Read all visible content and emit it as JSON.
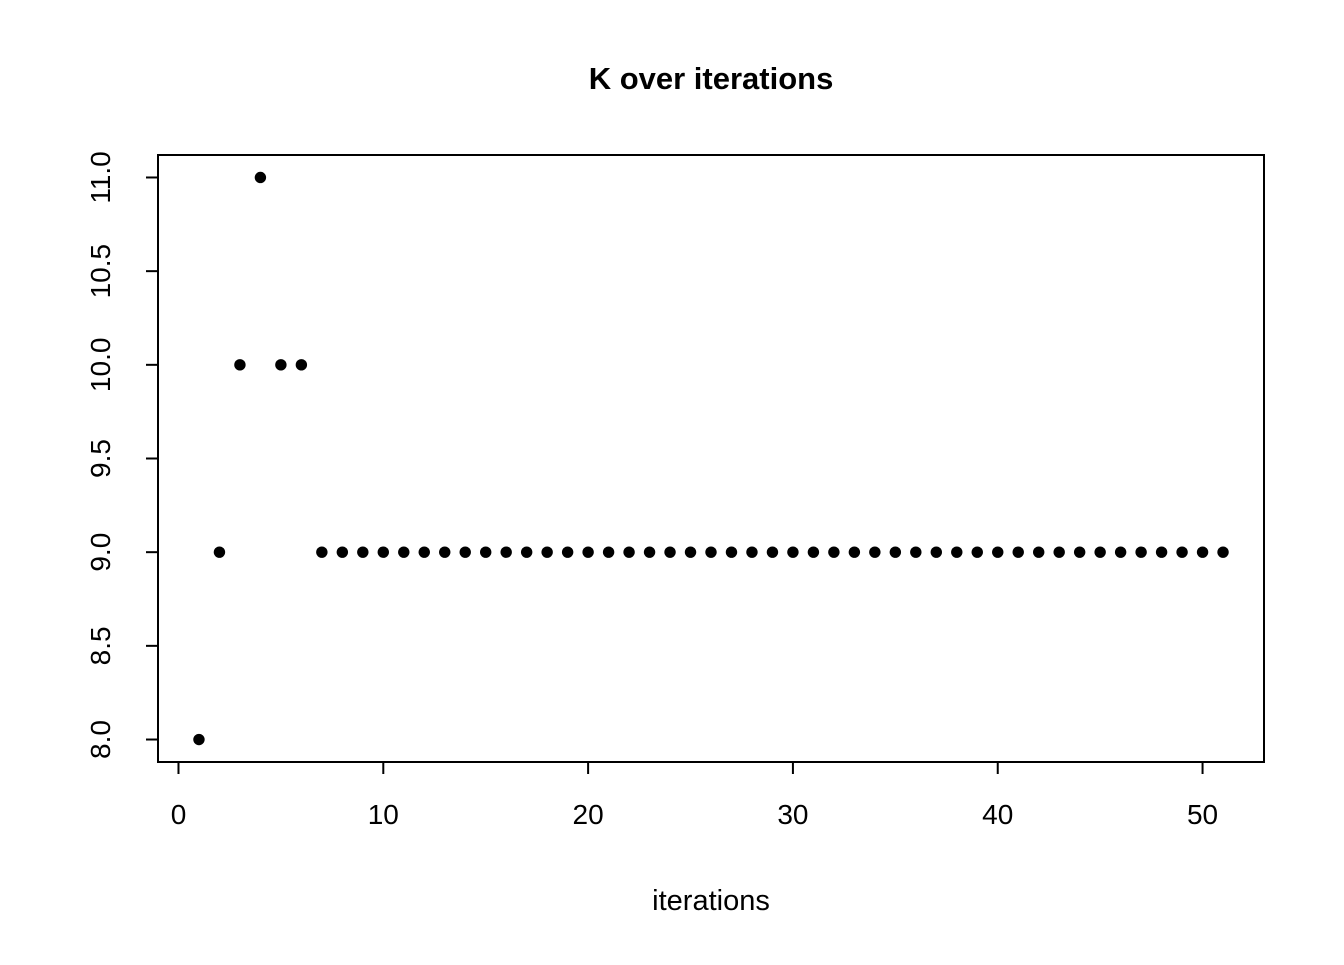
{
  "page": {
    "background": "#ffffff"
  },
  "chart_data": {
    "type": "scatter",
    "title": "K over iterations",
    "xlabel": "iterations",
    "ylabel": "",
    "x": [
      1,
      2,
      3,
      4,
      5,
      6,
      7,
      8,
      9,
      10,
      11,
      12,
      13,
      14,
      15,
      16,
      17,
      18,
      19,
      20,
      21,
      22,
      23,
      24,
      25,
      26,
      27,
      28,
      29,
      30,
      31,
      32,
      33,
      34,
      35,
      36,
      37,
      38,
      39,
      40,
      41,
      42,
      43,
      44,
      45,
      46,
      47,
      48,
      49,
      50,
      51
    ],
    "y": [
      8,
      9,
      10,
      11,
      10,
      10,
      9,
      9,
      9,
      9,
      9,
      9,
      9,
      9,
      9,
      9,
      9,
      9,
      9,
      9,
      9,
      9,
      9,
      9,
      9,
      9,
      9,
      9,
      9,
      9,
      9,
      9,
      9,
      9,
      9,
      9,
      9,
      9,
      9,
      9,
      9,
      9,
      9,
      9,
      9,
      9,
      9,
      9,
      9,
      9,
      9
    ],
    "xlim": [
      -1,
      53
    ],
    "ylim": [
      7.88,
      11.12
    ],
    "xticks": [
      0,
      10,
      20,
      30,
      40,
      50
    ],
    "xtick_labels": [
      "0",
      "10",
      "20",
      "30",
      "40",
      "50"
    ],
    "yticks": [
      8.0,
      8.5,
      9.0,
      9.5,
      10.0,
      10.5,
      11.0
    ],
    "ytick_labels": [
      "8.0",
      "8.5",
      "9.0",
      "9.5",
      "10.0",
      "10.5",
      "11.0"
    ],
    "grid": false,
    "legend": null,
    "point_color": "#000000",
    "axis_color": "#000000",
    "background_color": "#ffffff"
  }
}
